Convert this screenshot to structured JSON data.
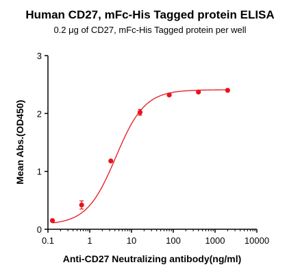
{
  "chart_data": {
    "type": "scatter",
    "title": "Human CD27, mFc-His Tagged protein ELISA",
    "subtitle": "0.2 μg of CD27, mFc-His Tagged protein per well",
    "xlabel": "Anti-CD27 Neutralizing antibody(ng/ml)",
    "ylabel": "Mean Abs.(OD450)",
    "x_scale": "log",
    "xlim": [
      0.1,
      10000
    ],
    "ylim": [
      0,
      3
    ],
    "x_ticks": [
      "0.1",
      "1",
      "10",
      "100",
      "1000",
      "10000"
    ],
    "y_ticks": [
      "0",
      "1",
      "2",
      "3"
    ],
    "grid": false,
    "series_color": "#e8141c",
    "points": [
      {
        "x": 0.128,
        "y": 0.15,
        "err": 0.01
      },
      {
        "x": 0.64,
        "y": 0.42,
        "err": 0.07
      },
      {
        "x": 3.2,
        "y": 1.18,
        "err": 0.02
      },
      {
        "x": 16,
        "y": 2.02,
        "err": 0.05
      },
      {
        "x": 80,
        "y": 2.32,
        "err": 0.02
      },
      {
        "x": 400,
        "y": 2.37,
        "err": 0.01
      },
      {
        "x": 2000,
        "y": 2.4,
        "err": 0.01
      }
    ],
    "fit": {
      "model": "4PL",
      "bottom": 0.08,
      "top": 2.41,
      "ec50": 4.2,
      "hill": 1.25
    }
  }
}
